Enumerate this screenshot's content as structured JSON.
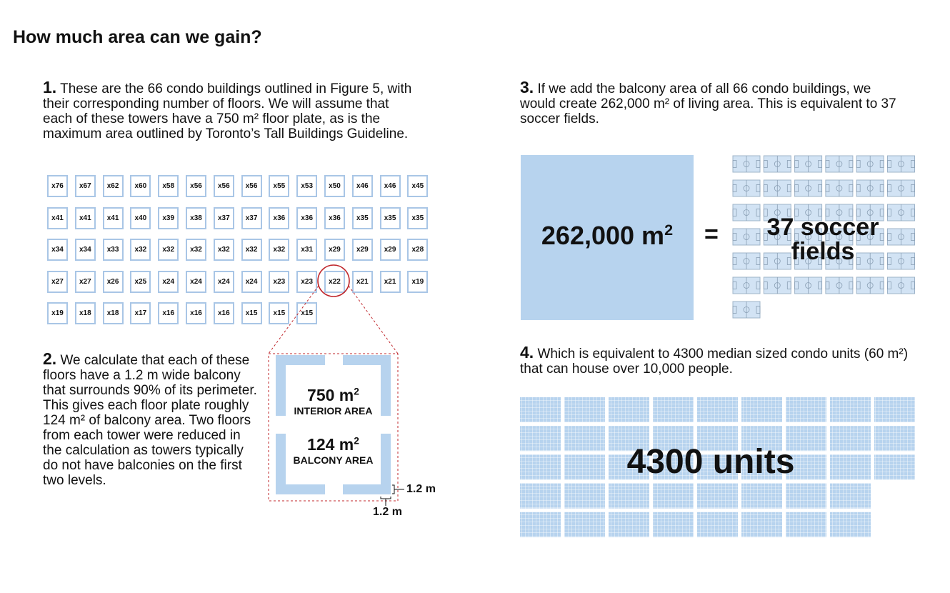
{
  "title": "How much area can we gain?",
  "step1": {
    "num": "1.",
    "text": "These are the 66 condo buildings outlined in Figure 5, with their corresponding number of floors. We will assume that each of these towers have a 750 m² floor plate, as is the maximum area outlined by Toronto’s Tall Buildings Guideline."
  },
  "towers": [
    "x76",
    "x67",
    "x62",
    "x60",
    "x58",
    "x56",
    "x56",
    "x56",
    "x55",
    "x53",
    "x50",
    "x46",
    "x46",
    "x45",
    "x41",
    "x41",
    "x41",
    "x40",
    "x39",
    "x38",
    "x37",
    "x37",
    "x36",
    "x36",
    "x36",
    "x35",
    "x35",
    "x35",
    "x34",
    "x34",
    "x33",
    "x32",
    "x32",
    "x32",
    "x32",
    "x32",
    "x32",
    "x31",
    "x29",
    "x29",
    "x29",
    "x28",
    "x27",
    "x27",
    "x26",
    "x25",
    "x24",
    "x24",
    "x24",
    "x24",
    "x23",
    "x23",
    "x22",
    "x21",
    "x21",
    "x19",
    "x19",
    "x18",
    "x18",
    "x17",
    "x16",
    "x16",
    "x16",
    "x15",
    "x15",
    "x15"
  ],
  "highlighted_tower": "x22",
  "step2": {
    "num": "2.",
    "text": "We calculate that each of these floors have a 1.2 m wide balcony that surrounds 90% of its perimeter. This gives each floor plate roughly 124 m² of balcony area. Two floors from each tower were reduced in the calculation as towers typically do not have balconies on the first two levels."
  },
  "floor_plan": {
    "interior_area": "750 m",
    "interior_sup": "2",
    "interior_label": "INTERIOR AREA",
    "balcony_area": "124 m",
    "balcony_sup": "2",
    "balcony_label": "BALCONY AREA",
    "dim_right": "1.2 m",
    "dim_bottom": "1.2 m"
  },
  "step3": {
    "num": "3.",
    "text": "If we add the balcony area of all 66 condo buildings, we would create 262,000 m² of living area. This is equivalent to 37 soccer fields."
  },
  "comparison": {
    "area_value": "262,000 m",
    "area_sup": "2",
    "equals": "=",
    "fields_line1": "37 soccer",
    "fields_line2": "fields",
    "field_count": 37,
    "field_columns": 6
  },
  "step4": {
    "num": "4.",
    "text": "Which is equivalent to 4300 median sized condo units (60 m²) that can house over 10,000 people."
  },
  "units": {
    "label": "4300 units",
    "block_rows": [
      9,
      9,
      9,
      8,
      8
    ]
  },
  "colors": {
    "accent": "#b7d3ee",
    "tower_border": "#a9c6e6",
    "highlight": "#c0282d"
  }
}
